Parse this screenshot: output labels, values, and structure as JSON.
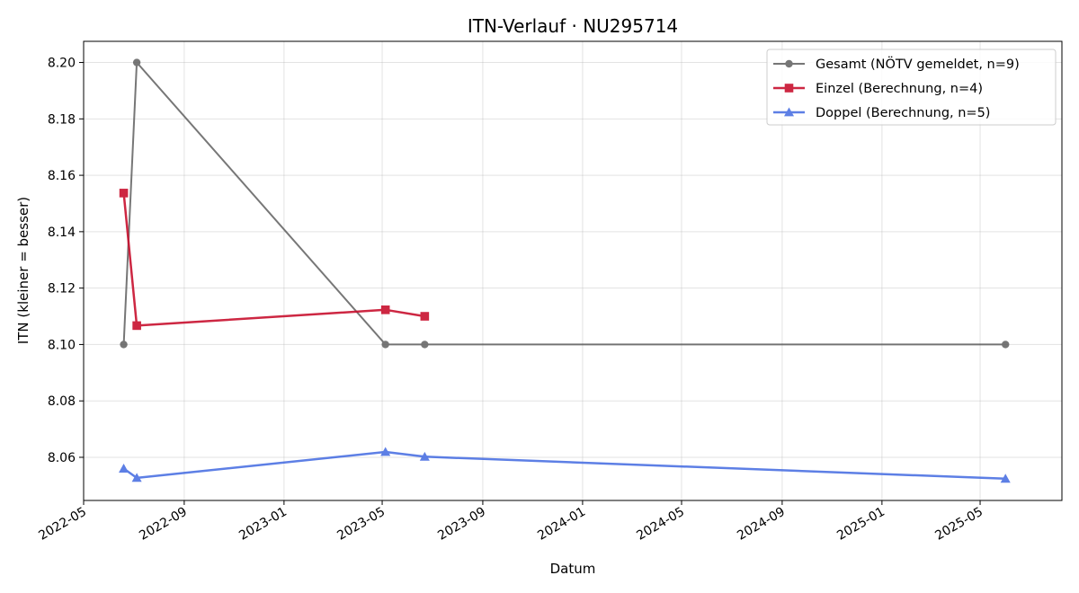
{
  "chart_data": {
    "type": "line",
    "title": "ITN-Verlauf · NU295714",
    "xlabel": "Datum",
    "ylabel": "ITN  (kleiner = besser)",
    "x_axis_type": "date",
    "xlim": [
      "2022-05-01",
      "2025-08-09"
    ],
    "ylim": [
      8.0447,
      8.2075
    ],
    "xticks": [
      "2022-05-01",
      "2022-09-01",
      "2023-01-01",
      "2023-05-01",
      "2023-09-01",
      "2024-01-01",
      "2024-05-01",
      "2024-09-01",
      "2025-01-01",
      "2025-05-01"
    ],
    "xtick_labels": [
      "2022-05",
      "2022-09",
      "2023-01",
      "2023-05",
      "2023-09",
      "2024-01",
      "2024-05",
      "2024-09",
      "2025-01",
      "2025-05"
    ],
    "yticks": [
      8.06,
      8.08,
      8.1,
      8.12,
      8.14,
      8.16,
      8.18,
      8.2
    ],
    "ytick_labels": [
      "8.06",
      "8.08",
      "8.10",
      "8.12",
      "8.14",
      "8.16",
      "8.18",
      "8.20"
    ],
    "grid": true,
    "legend_position": "top-right",
    "series": [
      {
        "name": "Gesamt (NÖTV gemeldet, n=9)",
        "color": "#555555",
        "marker": "circle",
        "points": [
          {
            "x": "2022-06-19",
            "y": 8.1
          },
          {
            "x": "2022-07-05",
            "y": 8.2
          },
          {
            "x": "2023-05-05",
            "y": 8.1
          },
          {
            "x": "2023-06-22",
            "y": 8.1
          },
          {
            "x": "2025-06-01",
            "y": 8.1
          }
        ]
      },
      {
        "name": "Einzel (Berechnung, n=4)",
        "color": "#c8102e",
        "marker": "square",
        "points": [
          {
            "x": "2022-06-19",
            "y": 8.1537
          },
          {
            "x": "2022-07-05",
            "y": 8.1067
          },
          {
            "x": "2023-05-05",
            "y": 8.1123
          },
          {
            "x": "2023-06-22",
            "y": 8.11
          }
        ]
      },
      {
        "name": "Doppel (Berechnung, n=5)",
        "color": "#4169e1",
        "marker": "triangle",
        "points": [
          {
            "x": "2022-06-19",
            "y": 8.056
          },
          {
            "x": "2022-07-05",
            "y": 8.0527
          },
          {
            "x": "2023-05-05",
            "y": 8.0619
          },
          {
            "x": "2023-06-22",
            "y": 8.0602
          },
          {
            "x": "2025-06-01",
            "y": 8.0524
          }
        ]
      }
    ]
  }
}
